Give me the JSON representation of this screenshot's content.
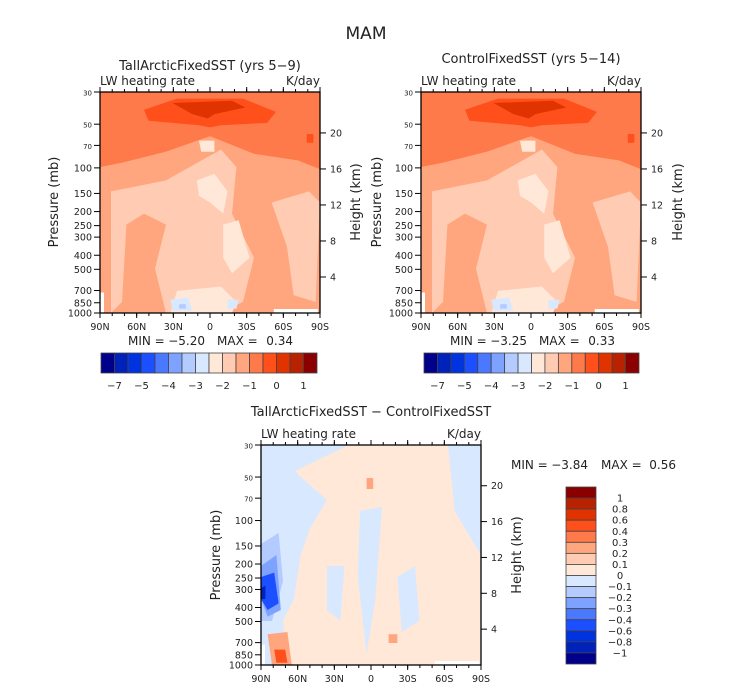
{
  "figure": {
    "title": "MAM"
  },
  "chart_data": [
    {
      "type": "heatmap",
      "id": "panel-tall",
      "title": "TallArcticFixedSST (yrs 5−9)",
      "left_label": "LW heating rate",
      "right_label": "K/day",
      "xlabel": "",
      "ylabel": "Pressure (mb)",
      "y2label": "Height (km)",
      "x_ticks": [
        "90N",
        "60N",
        "30N",
        "0",
        "30S",
        "60S",
        "90S"
      ],
      "x_range": [
        90,
        -90
      ],
      "y_ticks": [
        "30",
        "50",
        "70",
        "100",
        "150",
        "200",
        "250",
        "300",
        "400",
        "500",
        "700",
        "850",
        "1000"
      ],
      "y_tick_values": [
        30,
        50,
        70,
        100,
        150,
        200,
        250,
        300,
        400,
        500,
        700,
        850,
        1000
      ],
      "y_range": [
        1000,
        30
      ],
      "y_scale": "log",
      "y2_ticks": [
        "20",
        "16",
        "12",
        "8",
        "4"
      ],
      "y2_tick_values": [
        20,
        16,
        12,
        8,
        4
      ],
      "stats": {
        "min_label": "MIN =",
        "min": "−5.20",
        "max_label": "MAX =",
        "max": "0.34"
      },
      "colorbar": {
        "orientation": "horizontal",
        "labels": [
          "−7",
          "−5",
          "−4",
          "−3",
          "−2",
          "−1",
          "0",
          "1"
        ],
        "colors": [
          "#00008a",
          "#0022b8",
          "#0033e0",
          "#1c4fff",
          "#4a78ff",
          "#7ea2ff",
          "#b3cbff",
          "#d8e8ff",
          "#ffe8d8",
          "#ffcbb3",
          "#ffa67e",
          "#ff7a4a",
          "#ff501c",
          "#e03300",
          "#b82200",
          "#8a0000"
        ]
      },
      "fields": "warm: strong cooling aloft near 70-100mb over tropics (dark orange), moderate cooling 100-350mb, lighter mid-troposphere"
    },
    {
      "type": "heatmap",
      "id": "panel-control",
      "title": "ControlFixedSST (yrs 5−14)",
      "left_label": "LW heating rate",
      "right_label": "K/day",
      "xlabel": "",
      "ylabel": "Pressure (mb)",
      "y2label": "Height (km)",
      "x_ticks": [
        "90N",
        "60N",
        "30N",
        "0",
        "30S",
        "60S",
        "90S"
      ],
      "x_range": [
        90,
        -90
      ],
      "y_ticks": [
        "30",
        "50",
        "70",
        "100",
        "150",
        "200",
        "250",
        "300",
        "400",
        "500",
        "700",
        "850",
        "1000"
      ],
      "y_tick_values": [
        30,
        50,
        70,
        100,
        150,
        200,
        250,
        300,
        400,
        500,
        700,
        850,
        1000
      ],
      "y_range": [
        1000,
        30
      ],
      "y_scale": "log",
      "y2_ticks": [
        "20",
        "16",
        "12",
        "8",
        "4"
      ],
      "y2_tick_values": [
        20,
        16,
        12,
        8,
        4
      ],
      "stats": {
        "min_label": "MIN =",
        "min": "−3.25",
        "max_label": "MAX =",
        "max": "0.33"
      },
      "colorbar": {
        "orientation": "horizontal",
        "labels": [
          "−7",
          "−5",
          "−4",
          "−3",
          "−2",
          "−1",
          "0",
          "1"
        ],
        "colors": [
          "#00008a",
          "#0022b8",
          "#0033e0",
          "#1c4fff",
          "#4a78ff",
          "#7ea2ff",
          "#b3cbff",
          "#d8e8ff",
          "#ffe8d8",
          "#ffcbb3",
          "#ffa67e",
          "#ff7a4a",
          "#ff501c",
          "#e03300",
          "#b82200",
          "#8a0000"
        ]
      }
    },
    {
      "type": "heatmap",
      "id": "panel-diff",
      "title": "TallArcticFixedSST − ControlFixedSST",
      "left_label": "LW heating rate",
      "right_label": "K/day",
      "xlabel": "",
      "ylabel": "Pressure (mb)",
      "y2label": "Height (km)",
      "x_ticks": [
        "90N",
        "60N",
        "30N",
        "0",
        "30S",
        "60S",
        "90S"
      ],
      "x_range": [
        90,
        -90
      ],
      "y_ticks": [
        "30",
        "50",
        "70",
        "100",
        "150",
        "200",
        "250",
        "300",
        "400",
        "500",
        "700",
        "850",
        "1000"
      ],
      "y_tick_values": [
        30,
        50,
        70,
        100,
        150,
        200,
        250,
        300,
        400,
        500,
        700,
        850,
        1000
      ],
      "y_range": [
        1000,
        30
      ],
      "y_scale": "log",
      "y2_ticks": [
        "20",
        "16",
        "12",
        "8",
        "4"
      ],
      "y2_tick_values": [
        20,
        16,
        12,
        8,
        4
      ],
      "stats": {
        "min_label": "MIN =",
        "min": "−3.84",
        "max_label": "MAX =",
        "max": "0.56"
      },
      "colorbar": {
        "orientation": "vertical",
        "labels": [
          "1",
          "0.8",
          "0.6",
          "0.4",
          "0.3",
          "0.2",
          "0.1",
          "0",
          "−0.1",
          "−0.2",
          "−0.3",
          "−0.4",
          "−0.6",
          "−0.8",
          "−1"
        ],
        "colors": [
          "#8a0000",
          "#b82200",
          "#e03300",
          "#ff501c",
          "#ff7a4a",
          "#ffa67e",
          "#ffcbb3",
          "#ffe8d8",
          "#d8e8ff",
          "#b3cbff",
          "#7ea2ff",
          "#4a78ff",
          "#1c4fff",
          "#0033e0",
          "#0022b8",
          "#00008a"
        ]
      }
    }
  ]
}
